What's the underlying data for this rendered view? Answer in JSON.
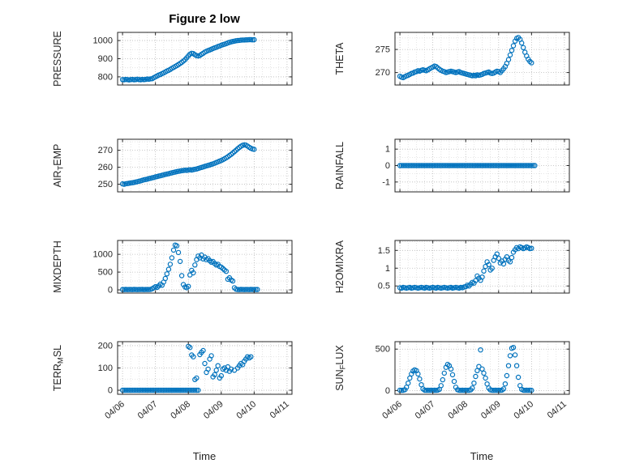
{
  "title": "Figure 2 low",
  "xlabel": "Time",
  "axis": {
    "xlim": [
      -0.15,
      5.15
    ],
    "xticks": [
      0,
      1,
      2,
      3,
      4,
      5
    ],
    "xticklabels": [
      "04/06",
      "04/07",
      "04/08",
      "04/09",
      "04/10",
      "04/11"
    ],
    "marker_color": "#0072BD",
    "axis_color": "#262626",
    "grid_color": "#b9b9b9",
    "minor_grid_color": "#dedede",
    "grid": true,
    "legend": "none"
  },
  "chart_data": [
    {
      "name": "pressure",
      "type": "scatter",
      "ylabel": "PRESSURE",
      "ylabel_parts": [
        {
          "t": "PRESSURE",
          "sub": false
        }
      ],
      "ylim": [
        755,
        1045
      ],
      "yticks": [
        800,
        900,
        1000
      ],
      "yticklabels": [
        "800",
        "900",
        "1000"
      ],
      "x0": 0,
      "dx": 0.05,
      "y": [
        785,
        784,
        786,
        785,
        783,
        785,
        786,
        784,
        785,
        787,
        785,
        784,
        786,
        785,
        786,
        788,
        787,
        789,
        790,
        795,
        800,
        805,
        810,
        813,
        818,
        822,
        827,
        832,
        836,
        841,
        847,
        852,
        857,
        862,
        868,
        874,
        880,
        887,
        895,
        905,
        915,
        925,
        930,
        928,
        922,
        917,
        915,
        918,
        924,
        930,
        936,
        941,
        945,
        948,
        952,
        956,
        960,
        963,
        967,
        970,
        974,
        977,
        980,
        983,
        987,
        990,
        993,
        995,
        997,
        999,
        1000,
        1001,
        1002,
        1003,
        1003,
        1004,
        1004,
        1005,
        1005,
        1004,
        1005
      ]
    },
    {
      "name": "airtemp",
      "type": "scatter",
      "ylabel": "AIR_TEMP",
      "ylabel_parts": [
        {
          "t": "AIR",
          "sub": false
        },
        {
          "t": "T",
          "sub": true
        },
        {
          "t": "EMP",
          "sub": false
        }
      ],
      "ylim": [
        245.5,
        276.5
      ],
      "yticks": [
        250,
        260,
        270
      ],
      "yticklabels": [
        "250",
        "260",
        "270"
      ],
      "x0": 0,
      "dx": 0.05,
      "y": [
        250.2,
        250.0,
        250.3,
        250.4,
        250.6,
        250.8,
        250.9,
        251.1,
        251.3,
        251.5,
        251.8,
        252.0,
        252.3,
        252.6,
        252.8,
        253.0,
        253.3,
        253.5,
        253.8,
        254.0,
        254.3,
        254.5,
        254.8,
        255.0,
        255.3,
        255.5,
        255.8,
        256.0,
        256.2,
        256.5,
        256.7,
        257.0,
        257.2,
        257.4,
        257.6,
        257.8,
        258.0,
        258.1,
        258.3,
        258.2,
        258.4,
        258.5,
        258.4,
        258.6,
        258.8,
        259.0,
        259.3,
        259.6,
        259.9,
        260.2,
        260.5,
        260.8,
        261.1,
        261.4,
        261.7,
        262.0,
        262.4,
        262.8,
        263.2,
        263.6,
        264.0,
        264.5,
        265.0,
        265.6,
        266.2,
        266.9,
        267.6,
        268.4,
        269.2,
        270.0,
        270.9,
        271.7,
        272.4,
        272.9,
        273.2,
        273.0,
        272.5,
        271.8,
        271.2,
        270.8,
        270.6
      ]
    },
    {
      "name": "mixdepth",
      "type": "scatter",
      "ylabel": "MIXDEPTH",
      "ylabel_parts": [
        {
          "t": "MIXDEPTH",
          "sub": false
        }
      ],
      "ylim": [
        -90,
        1390
      ],
      "yticks": [
        0,
        500,
        1000
      ],
      "yticklabels": [
        "0",
        "500",
        "1000"
      ],
      "x0": 0,
      "dx": 0.05,
      "y": [
        10,
        8,
        12,
        9,
        11,
        10,
        8,
        12,
        10,
        9,
        11,
        10,
        12,
        9,
        10,
        11,
        10,
        15,
        30,
        60,
        90,
        70,
        110,
        160,
        130,
        220,
        320,
        450,
        580,
        720,
        900,
        1120,
        1260,
        1240,
        1050,
        800,
        400,
        150,
        80,
        60,
        100,
        420,
        550,
        480,
        700,
        850,
        950,
        900,
        980,
        870,
        920,
        850,
        880,
        820,
        780,
        800,
        740,
        700,
        720,
        660,
        640,
        600,
        560,
        520,
        300,
        340,
        280,
        250,
        60,
        20,
        10,
        8,
        12,
        10,
        9,
        11,
        10,
        8,
        12,
        10,
        9,
        11,
        10
      ]
    },
    {
      "name": "terrmsl",
      "type": "scatter",
      "ylabel": "TERR_MSL",
      "ylabel_parts": [
        {
          "t": "TERR",
          "sub": false
        },
        {
          "t": "M",
          "sub": true
        },
        {
          "t": "SL",
          "sub": false
        }
      ],
      "ylim": [
        -18,
        218
      ],
      "yticks": [
        0,
        100,
        200
      ],
      "yticklabels": [
        "0",
        "100",
        "200"
      ],
      "x": [
        0,
        0.05,
        0.1,
        0.15,
        0.2,
        0.25,
        0.3,
        0.35,
        0.4,
        0.45,
        0.5,
        0.55,
        0.6,
        0.65,
        0.7,
        0.75,
        0.8,
        0.85,
        0.9,
        0.95,
        1,
        1.05,
        1.1,
        1.15,
        1.2,
        1.25,
        1.3,
        1.35,
        1.4,
        1.45,
        1.5,
        1.55,
        1.6,
        1.65,
        1.7,
        1.75,
        1.8,
        1.85,
        1.9,
        1.95,
        2,
        2.05,
        2.1,
        2.15,
        2.2,
        2.25,
        2.3,
        2.0,
        2.05,
        2.1,
        2.15,
        2.2,
        2.25,
        2.35,
        2.4,
        2.45,
        2.5,
        2.55,
        2.6,
        2.65,
        2.7,
        2.75,
        2.8,
        2.85,
        2.9,
        2.95,
        3.0,
        3.05,
        3.1,
        3.15,
        3.2,
        3.25,
        3.3,
        3.4,
        3.5,
        3.55,
        3.6,
        3.65,
        3.7,
        3.75,
        3.8,
        3.85,
        3.9
      ],
      "y": [
        0,
        0,
        0,
        0,
        0,
        0,
        0,
        0,
        0,
        0,
        0,
        0,
        0,
        0,
        0,
        0,
        0,
        0,
        0,
        0,
        0,
        0,
        0,
        0,
        0,
        0,
        0,
        0,
        0,
        0,
        0,
        0,
        0,
        0,
        0,
        0,
        0,
        0,
        0,
        0,
        0,
        0,
        0,
        0,
        0,
        0,
        0,
        197,
        192,
        158,
        150,
        48,
        55,
        160,
        170,
        178,
        120,
        80,
        95,
        140,
        155,
        60,
        70,
        90,
        110,
        55,
        65,
        95,
        100,
        90,
        105,
        85,
        95,
        90,
        100,
        110,
        120,
        115,
        130,
        140,
        150,
        145,
        150
      ]
    },
    {
      "name": "theta",
      "type": "scatter",
      "ylabel": "THETA",
      "ylabel_parts": [
        {
          "t": "THETA",
          "sub": false
        }
      ],
      "ylim": [
        267.3,
        278.7
      ],
      "yticks": [
        270,
        275
      ],
      "yticklabels": [
        "270",
        "275"
      ],
      "x0": 0,
      "dx": 0.05,
      "y": [
        269.2,
        269.0,
        268.9,
        269.1,
        269.3,
        269.4,
        269.6,
        269.8,
        269.9,
        270.1,
        270.2,
        270.4,
        270.3,
        270.5,
        270.6,
        270.5,
        270.4,
        270.6,
        270.8,
        271.0,
        271.2,
        271.4,
        271.3,
        271.0,
        270.7,
        270.5,
        270.3,
        270.2,
        270.0,
        270.1,
        270.2,
        270.3,
        270.2,
        270.1,
        270.0,
        270.1,
        270.2,
        270.0,
        269.9,
        269.8,
        269.7,
        269.6,
        269.5,
        269.4,
        269.3,
        269.4,
        269.3,
        269.5,
        269.4,
        269.5,
        269.6,
        269.8,
        269.9,
        270.0,
        270.1,
        269.9,
        269.8,
        269.9,
        270.1,
        270.3,
        270.2,
        270.0,
        270.4,
        270.8,
        271.3,
        272.0,
        272.8,
        273.8,
        274.8,
        275.8,
        276.8,
        277.4,
        277.6,
        277.2,
        276.4,
        275.4,
        274.4,
        273.6,
        272.9,
        272.4,
        272.1
      ]
    },
    {
      "name": "rainfall",
      "type": "scatter",
      "ylabel": "RAINFALL",
      "ylabel_parts": [
        {
          "t": "RAINFALL",
          "sub": false
        }
      ],
      "ylim": [
        -1.6,
        1.6
      ],
      "yticks": [
        -1,
        0,
        1
      ],
      "yticklabels": [
        "-1",
        "0",
        "1"
      ],
      "x0": 0,
      "dx": 0.05,
      "y": [
        0,
        0,
        0,
        0,
        0,
        0,
        0,
        0,
        0,
        0,
        0,
        0,
        0,
        0,
        0,
        0,
        0,
        0,
        0,
        0,
        0,
        0,
        0,
        0,
        0,
        0,
        0,
        0,
        0,
        0,
        0,
        0,
        0,
        0,
        0,
        0,
        0,
        0,
        0,
        0,
        0,
        0,
        0,
        0,
        0,
        0,
        0,
        0,
        0,
        0,
        0,
        0,
        0,
        0,
        0,
        0,
        0,
        0,
        0,
        0,
        0,
        0,
        0,
        0,
        0,
        0,
        0,
        0,
        0,
        0,
        0,
        0,
        0,
        0,
        0,
        0,
        0,
        0,
        0,
        0,
        0,
        0,
        0
      ]
    },
    {
      "name": "h2omixra",
      "type": "scatter",
      "ylabel": "H2OMIXRA",
      "ylabel_parts": [
        {
          "t": "H2OMIXRA",
          "sub": false
        }
      ],
      "ylim": [
        0.3,
        1.78
      ],
      "yticks": [
        0.5,
        1,
        1.5
      ],
      "yticklabels": [
        "0.5",
        "1",
        "1.5"
      ],
      "x0": 0,
      "dx": 0.05,
      "y": [
        0.45,
        0.44,
        0.46,
        0.45,
        0.44,
        0.45,
        0.46,
        0.44,
        0.45,
        0.46,
        0.45,
        0.44,
        0.45,
        0.46,
        0.45,
        0.44,
        0.46,
        0.45,
        0.44,
        0.45,
        0.46,
        0.45,
        0.44,
        0.46,
        0.45,
        0.44,
        0.45,
        0.46,
        0.45,
        0.44,
        0.45,
        0.46,
        0.44,
        0.45,
        0.46,
        0.45,
        0.44,
        0.46,
        0.45,
        0.47,
        0.48,
        0.52,
        0.5,
        0.55,
        0.6,
        0.58,
        0.65,
        0.78,
        0.72,
        0.66,
        0.75,
        0.92,
        1.05,
        1.18,
        1.1,
        0.95,
        1.0,
        1.22,
        1.32,
        1.4,
        1.28,
        1.15,
        1.2,
        1.12,
        1.25,
        1.32,
        1.22,
        1.18,
        1.3,
        1.45,
        1.52,
        1.58,
        1.55,
        1.6,
        1.58,
        1.55,
        1.57,
        1.6,
        1.58,
        1.55,
        1.56
      ]
    },
    {
      "name": "sunflux",
      "type": "scatter",
      "ylabel": "SUN_FLUX",
      "ylabel_parts": [
        {
          "t": "SUN",
          "sub": false
        },
        {
          "t": "F",
          "sub": true
        },
        {
          "t": "LUX",
          "sub": false
        }
      ],
      "ylim": [
        -45,
        590
      ],
      "yticks": [
        0,
        500
      ],
      "yticklabels": [
        "0",
        "500"
      ],
      "x0": 0,
      "dx": 0.05,
      "y": [
        5,
        3,
        4,
        10,
        40,
        90,
        150,
        200,
        235,
        250,
        240,
        200,
        140,
        70,
        20,
        5,
        3,
        4,
        3,
        4,
        3,
        4,
        3,
        5,
        15,
        60,
        130,
        210,
        280,
        315,
        300,
        260,
        190,
        110,
        40,
        10,
        4,
        3,
        4,
        3,
        4,
        3,
        4,
        8,
        30,
        90,
        170,
        240,
        290,
        490,
        260,
        210,
        150,
        80,
        30,
        8,
        4,
        3,
        4,
        3,
        4,
        3,
        5,
        20,
        80,
        180,
        300,
        420,
        510,
        520,
        430,
        300,
        160,
        60,
        15,
        5,
        3,
        4,
        3,
        4,
        3
      ]
    }
  ]
}
